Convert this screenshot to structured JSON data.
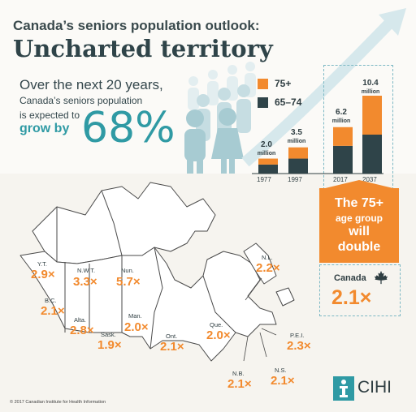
{
  "header": {
    "title_line1": "Canada’s seniors population outlook:",
    "title_line2": "Uncharted territory"
  },
  "intro": {
    "line1": "Over the next 20 years,",
    "line2": "Canada’s seniors population",
    "line3": "is expected to",
    "grow_by": "grow by",
    "percent": "68%"
  },
  "chart_data": {
    "type": "bar",
    "categories": [
      "1977",
      "1997",
      "2017",
      "2037"
    ],
    "series": [
      {
        "name": "65–74",
        "values": [
          1.2,
          2.0,
          3.7,
          5.2
        ],
        "color": "#2f4449"
      },
      {
        "name": "75+",
        "values": [
          0.8,
          1.5,
          2.5,
          5.2
        ],
        "color": "#f28a2e"
      }
    ],
    "totals": [
      "2.0",
      "3.5",
      "6.2",
      "10.4"
    ],
    "unit": "million",
    "stacked": true,
    "legend_position": "top-left"
  },
  "callout": {
    "line1": "The 75+",
    "line2": "age group",
    "line3": "will",
    "line4": "double"
  },
  "canada_total": {
    "label": "Canada",
    "value": "2.1×",
    "icon": "maple-leaf-icon"
  },
  "map": {
    "fill_color": "#ffffff",
    "border_color": "#4a4a4a",
    "accent_color": "#f28a2e",
    "regions": [
      {
        "label": "Y.T.",
        "value": "2.9×"
      },
      {
        "label": "N.W.T.",
        "value": "3.3×"
      },
      {
        "label": "Nun.",
        "value": "5.7×"
      },
      {
        "label": "B.C.",
        "value": "2.1×"
      },
      {
        "label": "Alta.",
        "value": "2.8×"
      },
      {
        "label": "Sask.",
        "value": "1.9×"
      },
      {
        "label": "Man.",
        "value": "2.0×"
      },
      {
        "label": "Ont.",
        "value": "2.1×"
      },
      {
        "label": "Que.",
        "value": "2.0×"
      },
      {
        "label": "N.L.",
        "value": "2.2×"
      },
      {
        "label": "P.E.I.",
        "value": "2.3×"
      },
      {
        "label": "N.S.",
        "value": "2.1×"
      },
      {
        "label": "N.B.",
        "value": "2.1×"
      }
    ]
  },
  "footer": {
    "copyright": "© 2017 Canadian Institute for Health Information",
    "logo_text": "CIHI"
  },
  "colors": {
    "orange": "#f28a2e",
    "dark_teal": "#2f4449",
    "teal": "#2f9aa4",
    "light_teal": "#9fcad2"
  }
}
